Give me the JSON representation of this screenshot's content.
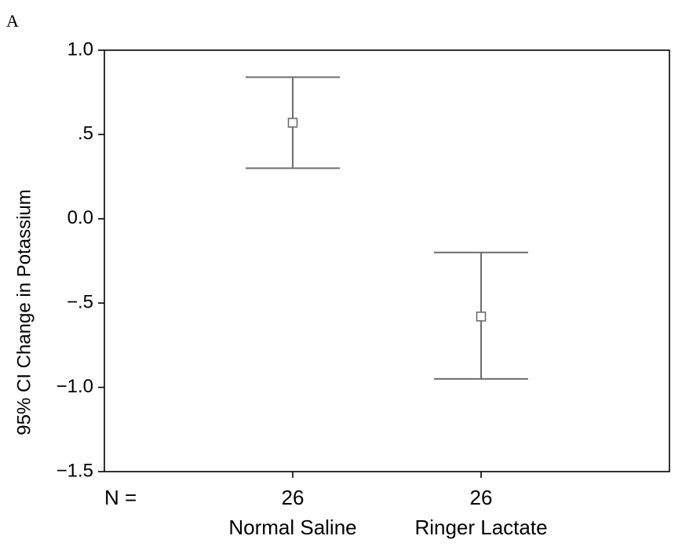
{
  "panel_label": "A",
  "chart_data": {
    "type": "errorbar",
    "ylabel": "95% CI Change in Potassium",
    "ylim": [
      -1.5,
      1.0
    ],
    "y_ticks": [
      {
        "value": 1.0,
        "label": "1.0"
      },
      {
        "value": 0.5,
        "label": ".5"
      },
      {
        "value": 0.0,
        "label": "0.0"
      },
      {
        "value": -0.5,
        "label": "−.5"
      },
      {
        "value": -1.0,
        "label": "−1.0"
      },
      {
        "value": -1.5,
        "label": "−1.5"
      }
    ],
    "n_label": "N =",
    "categories": [
      "Normal Saline",
      "Ringer Lactate"
    ],
    "n": [
      "26",
      "26"
    ],
    "mean": [
      0.57,
      -0.58
    ],
    "lower": [
      0.3,
      -0.95
    ],
    "upper": [
      0.84,
      -0.2
    ],
    "marker": "open-square",
    "grid": false
  }
}
